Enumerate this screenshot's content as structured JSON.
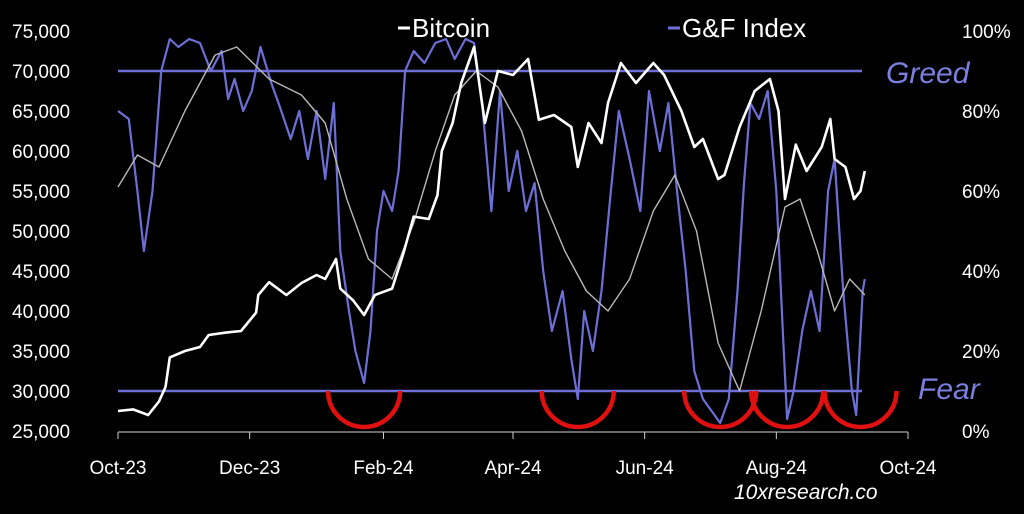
{
  "chart_data": {
    "type": "line",
    "credit": "10xresearch.co",
    "colors": {
      "bitcoin": "#ffffff",
      "index": "#6e6fd6",
      "index_ma": "#b8b8b8",
      "reference_lines": "#6e6fd6",
      "fear_arcs": "#e01010"
    },
    "legend": [
      {
        "label": "Bitcoin",
        "color": "#ffffff"
      },
      {
        "label": "G&F Index",
        "color": "#6e6fd6"
      }
    ],
    "x_ticks": [
      "Oct-23",
      "Dec-23",
      "Feb-24",
      "Apr-24",
      "Jun-24",
      "Aug-24",
      "Oct-24"
    ],
    "x_tick_dates": [
      "2023-10-01",
      "2023-12-01",
      "2024-02-01",
      "2024-04-01",
      "2024-06-01",
      "2024-08-01",
      "2024-10-01"
    ],
    "y_left": {
      "ticks": [
        "25,000",
        "30,000",
        "35,000",
        "40,000",
        "45,000",
        "50,000",
        "55,000",
        "60,000",
        "65,000",
        "70,000",
        "75,000"
      ],
      "range": [
        25000,
        75000
      ]
    },
    "y_right": {
      "ticks": [
        "0%",
        "20%",
        "40%",
        "60%",
        "80%",
        "100%"
      ],
      "range": [
        0,
        100
      ]
    },
    "reference_lines": [
      {
        "label": "Greed",
        "value": 70000
      },
      {
        "label": "Fear",
        "value": 30000
      }
    ],
    "fear_zones": [
      {
        "center": "2024-01-23"
      },
      {
        "center": "2024-05-01"
      },
      {
        "center": "2024-07-06"
      },
      {
        "center": "2024-08-06"
      },
      {
        "center": "2024-09-09"
      }
    ],
    "series": [
      {
        "name": "Bitcoin",
        "axis": "left",
        "points": [
          [
            "2023-10-01",
            27500
          ],
          [
            "2023-10-08",
            27700
          ],
          [
            "2023-10-15",
            27000
          ],
          [
            "2023-10-20",
            28700
          ],
          [
            "2023-10-23",
            30500
          ],
          [
            "2023-10-25",
            34200
          ],
          [
            "2023-11-01",
            35000
          ],
          [
            "2023-11-08",
            35500
          ],
          [
            "2023-11-12",
            37000
          ],
          [
            "2023-11-20",
            37300
          ],
          [
            "2023-11-27",
            37500
          ],
          [
            "2023-12-04",
            39800
          ],
          [
            "2023-12-05",
            42000
          ],
          [
            "2023-12-10",
            43600
          ],
          [
            "2023-12-18",
            42000
          ],
          [
            "2023-12-25",
            43500
          ],
          [
            "2024-01-01",
            44500
          ],
          [
            "2024-01-05",
            44000
          ],
          [
            "2024-01-10",
            46500
          ],
          [
            "2024-01-12",
            42800
          ],
          [
            "2024-01-18",
            41300
          ],
          [
            "2024-01-23",
            39500
          ],
          [
            "2024-01-28",
            42000
          ],
          [
            "2024-02-05",
            42800
          ],
          [
            "2024-02-10",
            47000
          ],
          [
            "2024-02-15",
            51800
          ],
          [
            "2024-02-22",
            51500
          ],
          [
            "2024-02-26",
            54500
          ],
          [
            "2024-02-28",
            60000
          ],
          [
            "2024-03-04",
            63500
          ],
          [
            "2024-03-08",
            68500
          ],
          [
            "2024-03-14",
            73000
          ],
          [
            "2024-03-19",
            63500
          ],
          [
            "2024-03-25",
            70000
          ],
          [
            "2024-04-01",
            69500
          ],
          [
            "2024-04-08",
            71500
          ],
          [
            "2024-04-13",
            63900
          ],
          [
            "2024-04-20",
            64500
          ],
          [
            "2024-04-28",
            63000
          ],
          [
            "2024-05-01",
            58000
          ],
          [
            "2024-05-06",
            63500
          ],
          [
            "2024-05-12",
            61000
          ],
          [
            "2024-05-15",
            66000
          ],
          [
            "2024-05-21",
            71000
          ],
          [
            "2024-05-28",
            68500
          ],
          [
            "2024-06-05",
            71000
          ],
          [
            "2024-06-10",
            69500
          ],
          [
            "2024-06-18",
            65000
          ],
          [
            "2024-06-24",
            60500
          ],
          [
            "2024-06-28",
            61500
          ],
          [
            "2024-07-05",
            56500
          ],
          [
            "2024-07-08",
            57000
          ],
          [
            "2024-07-15",
            63000
          ],
          [
            "2024-07-22",
            67500
          ],
          [
            "2024-07-29",
            69000
          ],
          [
            "2024-08-02",
            65000
          ],
          [
            "2024-08-05",
            54000
          ],
          [
            "2024-08-10",
            60800
          ],
          [
            "2024-08-15",
            57500
          ],
          [
            "2024-08-22",
            60500
          ],
          [
            "2024-08-26",
            64000
          ],
          [
            "2024-08-28",
            59000
          ],
          [
            "2024-09-02",
            58000
          ],
          [
            "2024-09-06",
            54000
          ],
          [
            "2024-09-09",
            55000
          ],
          [
            "2024-09-11",
            57500
          ]
        ]
      },
      {
        "name": "G&F Index",
        "axis": "right",
        "points": [
          [
            "2023-10-01",
            80
          ],
          [
            "2023-10-06",
            78
          ],
          [
            "2023-10-10",
            60
          ],
          [
            "2023-10-13",
            45
          ],
          [
            "2023-10-17",
            60
          ],
          [
            "2023-10-21",
            90
          ],
          [
            "2023-10-25",
            98
          ],
          [
            "2023-10-29",
            96
          ],
          [
            "2023-11-03",
            98
          ],
          [
            "2023-11-08",
            97
          ],
          [
            "2023-11-13",
            90
          ],
          [
            "2023-11-18",
            95
          ],
          [
            "2023-11-21",
            83
          ],
          [
            "2023-11-24",
            88
          ],
          [
            "2023-11-28",
            80
          ],
          [
            "2023-12-02",
            85
          ],
          [
            "2023-12-06",
            96
          ],
          [
            "2023-12-11",
            87
          ],
          [
            "2023-12-15",
            81
          ],
          [
            "2023-12-20",
            73
          ],
          [
            "2023-12-24",
            80
          ],
          [
            "2023-12-28",
            68
          ],
          [
            "2024-01-01",
            80
          ],
          [
            "2024-01-05",
            63
          ],
          [
            "2024-01-09",
            82
          ],
          [
            "2024-01-12",
            45
          ],
          [
            "2024-01-16",
            30
          ],
          [
            "2024-01-19",
            20
          ],
          [
            "2024-01-23",
            12
          ],
          [
            "2024-01-26",
            25
          ],
          [
            "2024-01-29",
            50
          ],
          [
            "2024-02-01",
            60
          ],
          [
            "2024-02-05",
            55
          ],
          [
            "2024-02-08",
            65
          ],
          [
            "2024-02-11",
            90
          ],
          [
            "2024-02-15",
            95
          ],
          [
            "2024-02-20",
            92
          ],
          [
            "2024-02-25",
            97
          ],
          [
            "2024-03-01",
            98
          ],
          [
            "2024-03-05",
            93
          ],
          [
            "2024-03-10",
            98
          ],
          [
            "2024-03-14",
            97
          ],
          [
            "2024-03-18",
            80
          ],
          [
            "2024-03-22",
            55
          ],
          [
            "2024-03-26",
            85
          ],
          [
            "2024-03-30",
            60
          ],
          [
            "2024-04-03",
            70
          ],
          [
            "2024-04-07",
            55
          ],
          [
            "2024-04-11",
            62
          ],
          [
            "2024-04-15",
            40
          ],
          [
            "2024-04-19",
            25
          ],
          [
            "2024-04-24",
            35
          ],
          [
            "2024-04-28",
            18
          ],
          [
            "2024-05-01",
            8
          ],
          [
            "2024-05-04",
            30
          ],
          [
            "2024-05-08",
            20
          ],
          [
            "2024-05-12",
            35
          ],
          [
            "2024-05-16",
            58
          ],
          [
            "2024-05-20",
            80
          ],
          [
            "2024-05-25",
            68
          ],
          [
            "2024-05-30",
            55
          ],
          [
            "2024-06-03",
            85
          ],
          [
            "2024-06-08",
            70
          ],
          [
            "2024-06-12",
            82
          ],
          [
            "2024-06-16",
            60
          ],
          [
            "2024-06-20",
            40
          ],
          [
            "2024-06-24",
            15
          ],
          [
            "2024-06-28",
            8
          ],
          [
            "2024-07-02",
            5
          ],
          [
            "2024-07-06",
            2
          ],
          [
            "2024-07-10",
            8
          ],
          [
            "2024-07-14",
            35
          ],
          [
            "2024-07-17",
            62
          ],
          [
            "2024-07-20",
            82
          ],
          [
            "2024-07-24",
            78
          ],
          [
            "2024-07-28",
            85
          ],
          [
            "2024-08-01",
            60
          ],
          [
            "2024-08-04",
            25
          ],
          [
            "2024-08-06",
            3
          ],
          [
            "2024-08-09",
            10
          ],
          [
            "2024-08-13",
            25
          ],
          [
            "2024-08-17",
            35
          ],
          [
            "2024-08-21",
            25
          ],
          [
            "2024-08-25",
            60
          ],
          [
            "2024-08-28",
            68
          ],
          [
            "2024-09-01",
            35
          ],
          [
            "2024-09-05",
            10
          ],
          [
            "2024-09-07",
            4
          ],
          [
            "2024-09-10",
            35
          ],
          [
            "2024-09-11",
            38
          ]
        ]
      },
      {
        "name": "",
        "axis": "right",
        "points": [
          [
            "2023-10-01",
            61
          ],
          [
            "2023-10-10",
            69
          ],
          [
            "2023-10-20",
            66
          ],
          [
            "2023-11-01",
            80
          ],
          [
            "2023-11-15",
            94
          ],
          [
            "2023-11-25",
            96
          ],
          [
            "2023-12-10",
            88
          ],
          [
            "2023-12-25",
            84
          ],
          [
            "2024-01-05",
            77
          ],
          [
            "2024-01-15",
            58
          ],
          [
            "2024-01-25",
            43
          ],
          [
            "2024-02-05",
            38
          ],
          [
            "2024-02-15",
            52
          ],
          [
            "2024-02-25",
            70
          ],
          [
            "2024-03-05",
            84
          ],
          [
            "2024-03-15",
            90
          ],
          [
            "2024-03-25",
            86
          ],
          [
            "2024-04-05",
            75
          ],
          [
            "2024-04-15",
            58
          ],
          [
            "2024-04-25",
            45
          ],
          [
            "2024-05-05",
            35
          ],
          [
            "2024-05-15",
            30
          ],
          [
            "2024-05-25",
            38
          ],
          [
            "2024-06-05",
            55
          ],
          [
            "2024-06-15",
            64
          ],
          [
            "2024-06-25",
            50
          ],
          [
            "2024-07-05",
            22
          ],
          [
            "2024-07-15",
            10
          ],
          [
            "2024-07-25",
            30
          ],
          [
            "2024-08-05",
            56
          ],
          [
            "2024-08-12",
            58
          ],
          [
            "2024-08-20",
            45
          ],
          [
            "2024-08-28",
            30
          ],
          [
            "2024-09-04",
            38
          ],
          [
            "2024-09-11",
            34
          ]
        ]
      }
    ]
  }
}
